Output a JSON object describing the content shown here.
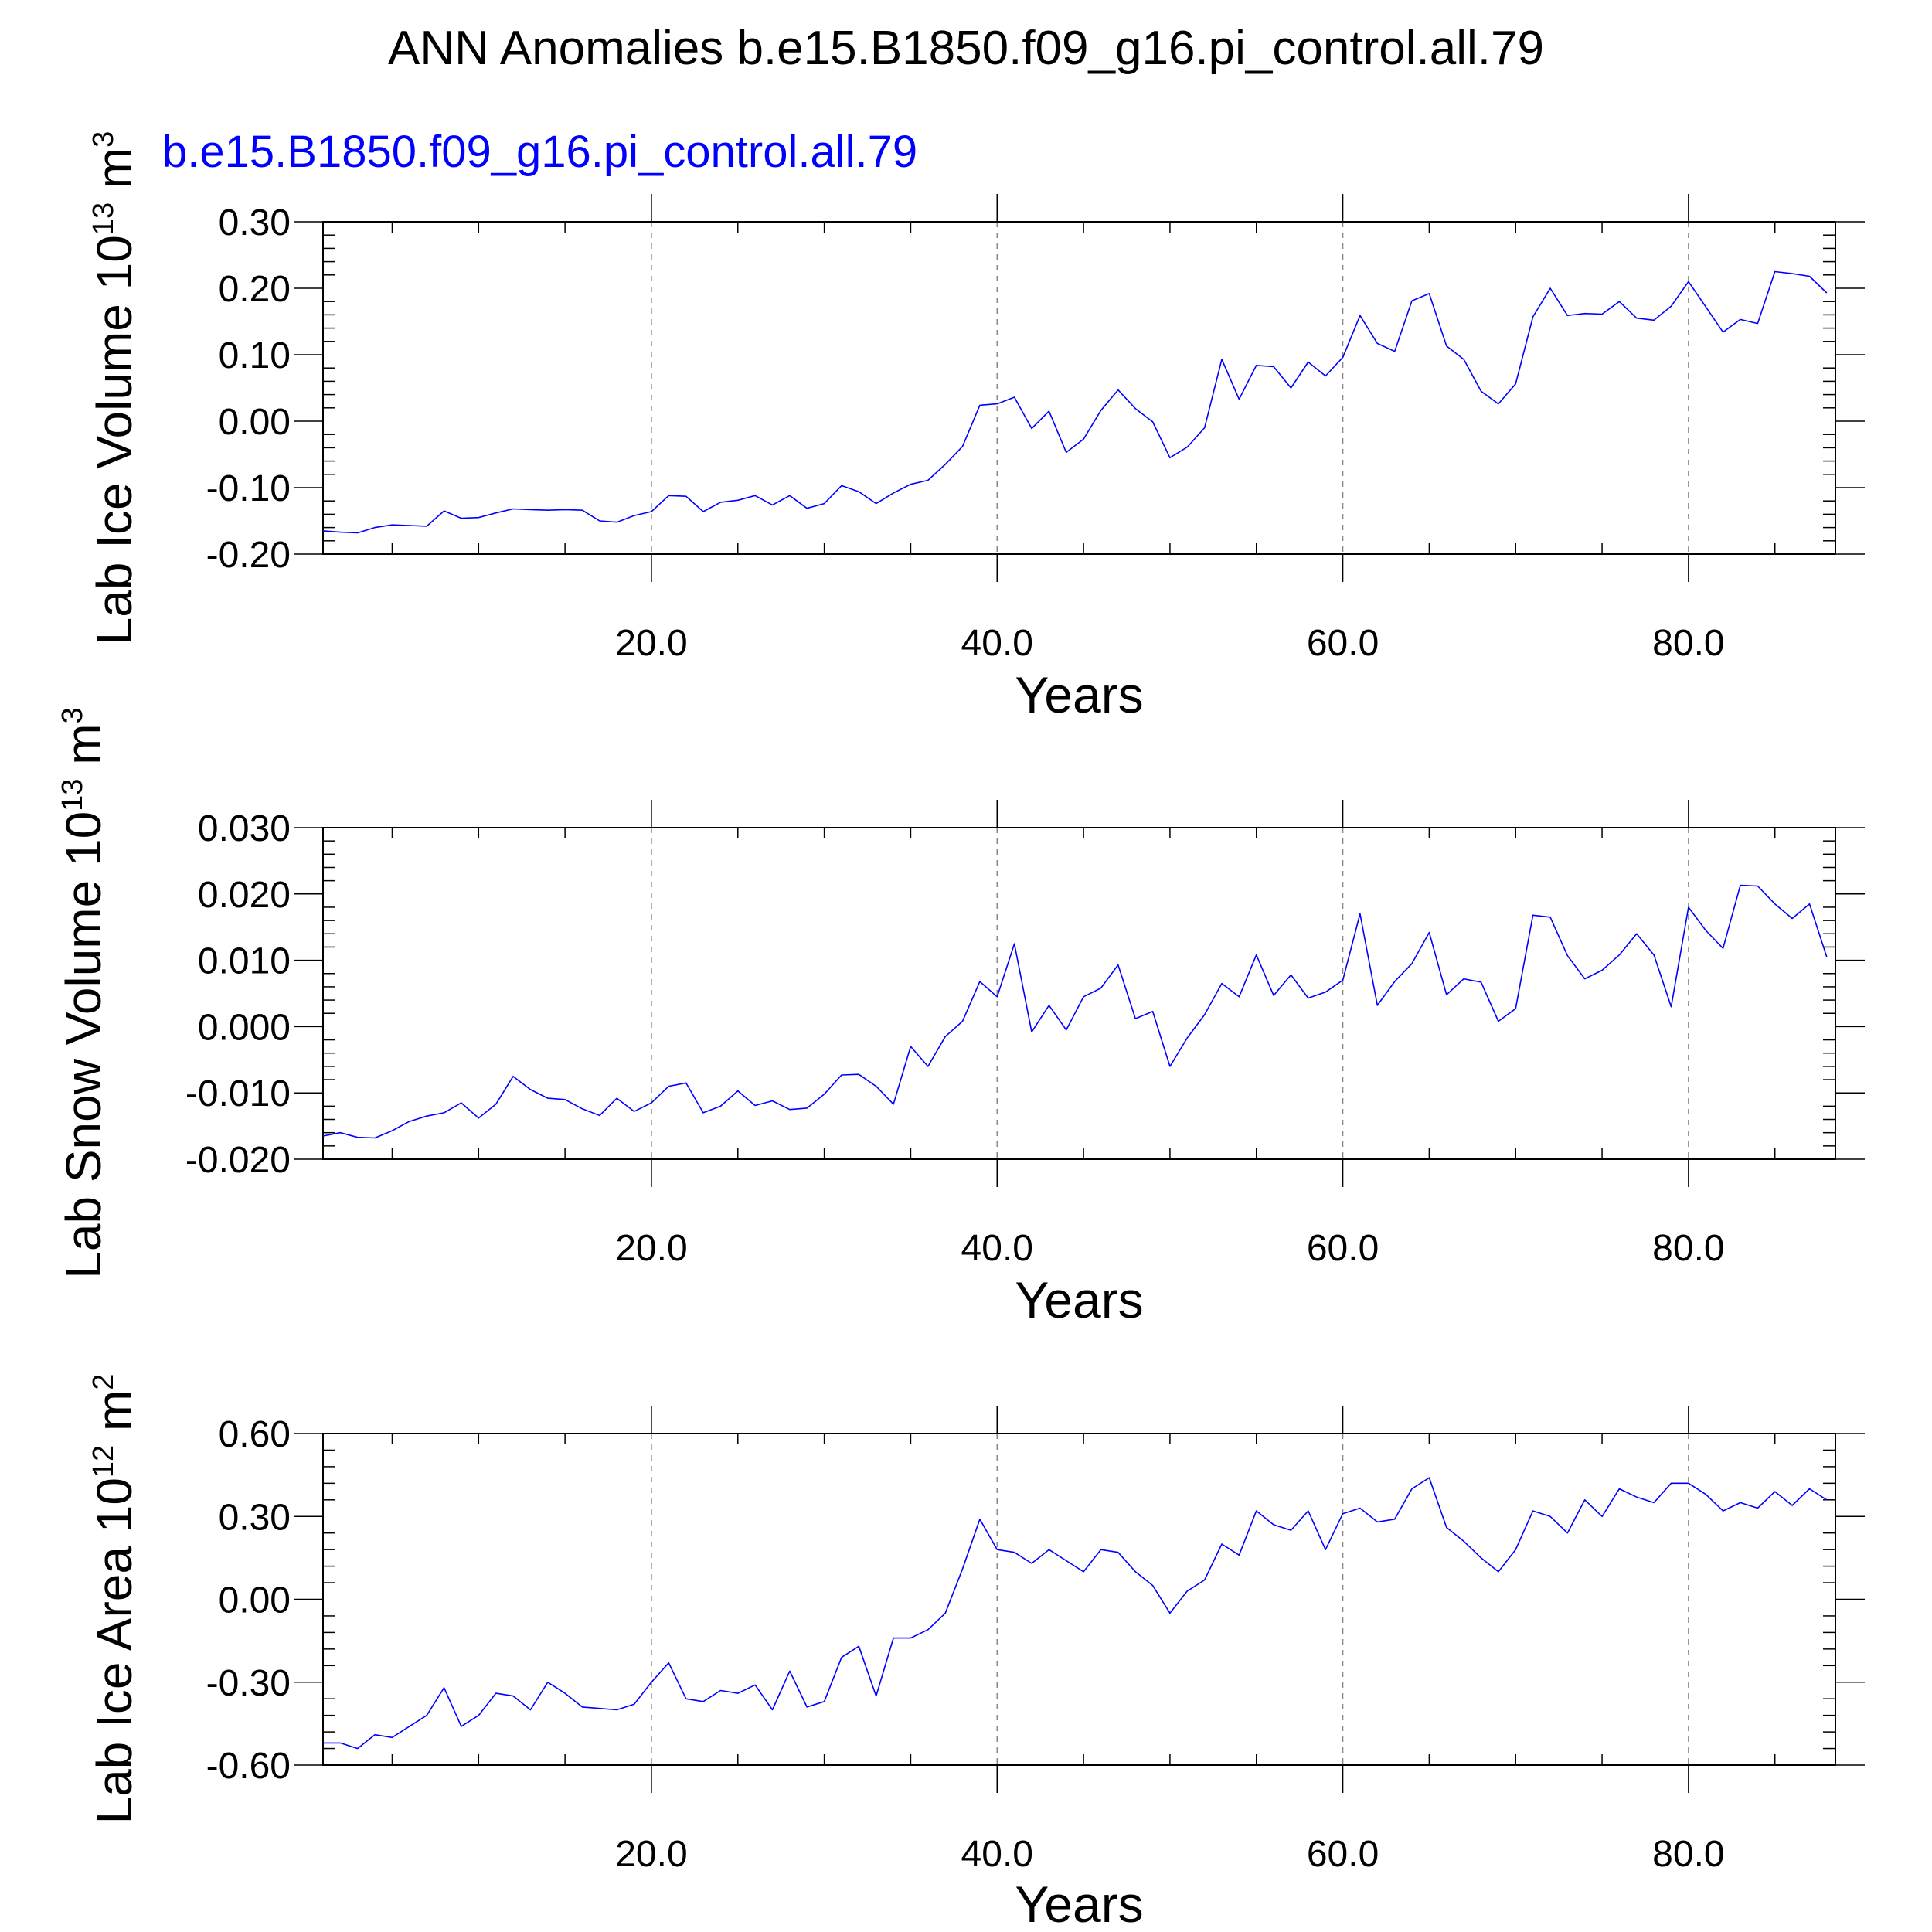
{
  "title": "ANN Anomalies b.e15.B1850.f09_g16.pi_control.all.79",
  "run_label": "b.e15.B1850.f09_g16.pi_control.all.79",
  "colors": {
    "series": "#0000ff",
    "run_label": "#0000ff",
    "axes": "#000000",
    "grid": "#888888"
  },
  "chart_data": [
    {
      "type": "line",
      "xlabel": "Years",
      "ylabel": {
        "main": "Lab Ice Volume 10",
        "exp": "13",
        "unit": " m",
        "unit_exp": "3"
      },
      "xlim": [
        1,
        88.5
      ],
      "ylim": [
        -0.2,
        0.3
      ],
      "xticks": [
        20,
        40,
        60,
        80
      ],
      "xtick_labels": [
        "20.0",
        "40.0",
        "60.0",
        "80.0"
      ],
      "yticks": [
        -0.2,
        -0.1,
        0.0,
        0.1,
        0.2,
        0.3
      ],
      "ytick_labels": [
        "-0.20",
        "-0.10",
        "0.00",
        "0.10",
        "0.20",
        "0.30"
      ],
      "grid": "dashed vertical at major x ticks",
      "series": [
        {
          "color": "#0000ff",
          "x": [
            1,
            2,
            3,
            4,
            5,
            6,
            7,
            8,
            9,
            10,
            11,
            12,
            13,
            14,
            15,
            16,
            17,
            18,
            19,
            20,
            21,
            22,
            23,
            24,
            25,
            26,
            27,
            28,
            29,
            30,
            31,
            32,
            33,
            34,
            35,
            36,
            37,
            38,
            39,
            40,
            41,
            42,
            43,
            44,
            45,
            46,
            47,
            48,
            49,
            50,
            51,
            52,
            53,
            54,
            55,
            56,
            57,
            58,
            59,
            60,
            61,
            62,
            63,
            64,
            65,
            66,
            67,
            68,
            69,
            70,
            71,
            72,
            73,
            74,
            75,
            76,
            77,
            78,
            79,
            80,
            81,
            82,
            83,
            84,
            85,
            86,
            87,
            88
          ],
          "values": [
            -0.165,
            -0.167,
            -0.168,
            -0.16,
            -0.156,
            -0.157,
            -0.158,
            -0.135,
            -0.146,
            -0.145,
            -0.138,
            -0.132,
            -0.133,
            -0.134,
            -0.133,
            -0.134,
            -0.15,
            -0.152,
            -0.142,
            -0.136,
            -0.112,
            -0.113,
            -0.136,
            -0.122,
            -0.119,
            -0.112,
            -0.126,
            -0.112,
            -0.131,
            -0.124,
            -0.097,
            -0.106,
            -0.124,
            -0.108,
            -0.095,
            -0.089,
            -0.065,
            -0.038,
            0.024,
            0.026,
            0.036,
            -0.011,
            0.015,
            -0.047,
            -0.027,
            0.016,
            0.047,
            0.019,
            -0.001,
            -0.055,
            -0.039,
            -0.01,
            0.093,
            0.033,
            0.084,
            0.082,
            0.05,
            0.089,
            0.068,
            0.096,
            0.159,
            0.117,
            0.105,
            0.181,
            0.192,
            0.113,
            0.093,
            0.045,
            0.026,
            0.056,
            0.157,
            0.2,
            0.159,
            0.162,
            0.161,
            0.18,
            0.155,
            0.152,
            0.173,
            0.21,
            0.172,
            0.134,
            0.153,
            0.147,
            0.225,
            0.222,
            0.218,
            0.193
          ]
        }
      ]
    },
    {
      "type": "line",
      "xlabel": "Years",
      "ylabel": {
        "main": "Lab Snow Volume 10",
        "exp": "13",
        "unit": " m",
        "unit_exp": "3"
      },
      "xlim": [
        1,
        88.5
      ],
      "ylim": [
        -0.02,
        0.03
      ],
      "xticks": [
        20,
        40,
        60,
        80
      ],
      "xtick_labels": [
        "20.0",
        "40.0",
        "60.0",
        "80.0"
      ],
      "yticks": [
        -0.02,
        -0.01,
        0.0,
        0.01,
        0.02,
        0.03
      ],
      "ytick_labels": [
        "-0.020",
        "-0.010",
        "0.000",
        "0.010",
        "0.020",
        "0.030"
      ],
      "grid": "dashed vertical at major x ticks",
      "series": [
        {
          "color": "#0000ff",
          "x": [
            1,
            2,
            3,
            4,
            5,
            6,
            7,
            8,
            9,
            10,
            11,
            12,
            13,
            14,
            15,
            16,
            17,
            18,
            19,
            20,
            21,
            22,
            23,
            24,
            25,
            26,
            27,
            28,
            29,
            30,
            31,
            32,
            33,
            34,
            35,
            36,
            37,
            38,
            39,
            40,
            41,
            42,
            43,
            44,
            45,
            46,
            47,
            48,
            49,
            50,
            51,
            52,
            53,
            54,
            55,
            56,
            57,
            58,
            59,
            60,
            61,
            62,
            63,
            64,
            65,
            66,
            67,
            68,
            69,
            70,
            71,
            72,
            73,
            74,
            75,
            76,
            77,
            78,
            79,
            80,
            81,
            82,
            83,
            84,
            85,
            86,
            87,
            88
          ],
          "values": [
            -0.0165,
            -0.016,
            -0.0167,
            -0.0168,
            -0.0157,
            -0.0143,
            -0.0135,
            -0.013,
            -0.0115,
            -0.0138,
            -0.0117,
            -0.0075,
            -0.0095,
            -0.0108,
            -0.011,
            -0.0124,
            -0.0134,
            -0.0108,
            -0.0128,
            -0.0115,
            -0.009,
            -0.0085,
            -0.013,
            -0.012,
            -0.0097,
            -0.0119,
            -0.0112,
            -0.0125,
            -0.0123,
            -0.0102,
            -0.0073,
            -0.0072,
            -0.009,
            -0.0117,
            -0.003,
            -0.006,
            -0.0015,
            0.0008,
            0.0068,
            0.0045,
            0.0125,
            -0.0008,
            0.0032,
            -0.0005,
            0.0045,
            0.0058,
            0.0093,
            0.0012,
            0.0023,
            -0.006,
            -0.0017,
            0.0018,
            0.0065,
            0.0045,
            0.0108,
            0.0047,
            0.0078,
            0.0043,
            0.0052,
            0.007,
            0.017,
            0.0032,
            0.0068,
            0.0095,
            0.0142,
            0.0048,
            0.0072,
            0.0067,
            0.0008,
            0.0027,
            0.0168,
            0.0165,
            0.0107,
            0.0072,
            0.0085,
            0.0108,
            0.014,
            0.0108,
            0.003,
            0.018,
            0.0145,
            0.0118,
            0.0213,
            0.0212,
            0.0185,
            0.0163,
            0.0185,
            0.0105
          ]
        }
      ]
    },
    {
      "type": "line",
      "xlabel": "Years",
      "ylabel": {
        "main": "Lab Ice Area 10",
        "exp": "12",
        "unit": " m",
        "unit_exp": "2"
      },
      "xlim": [
        1,
        88.5
      ],
      "ylim": [
        -0.6,
        0.6
      ],
      "xticks": [
        20,
        40,
        60,
        80
      ],
      "xtick_labels": [
        "20.0",
        "40.0",
        "60.0",
        "80.0"
      ],
      "yticks": [
        -0.6,
        -0.3,
        0.0,
        0.3,
        0.6
      ],
      "ytick_labels": [
        "-0.60",
        "-0.30",
        "0.00",
        "0.30",
        "0.60"
      ],
      "grid": "dashed vertical at major x ticks",
      "series": [
        {
          "color": "#0000ff",
          "x": [
            1,
            2,
            3,
            4,
            5,
            6,
            7,
            8,
            9,
            10,
            11,
            12,
            13,
            14,
            15,
            16,
            17,
            18,
            19,
            20,
            21,
            22,
            23,
            24,
            25,
            26,
            27,
            28,
            29,
            30,
            31,
            32,
            33,
            34,
            35,
            36,
            37,
            38,
            39,
            40,
            41,
            42,
            43,
            44,
            45,
            46,
            47,
            48,
            49,
            50,
            51,
            52,
            53,
            54,
            55,
            56,
            57,
            58,
            59,
            60,
            61,
            62,
            63,
            64,
            65,
            66,
            67,
            68,
            69,
            70,
            71,
            72,
            73,
            74,
            75,
            76,
            77,
            78,
            79,
            80,
            81,
            82,
            83,
            84,
            85,
            86,
            87,
            88
          ],
          "values": [
            -0.52,
            -0.52,
            -0.54,
            -0.49,
            -0.5,
            -0.46,
            -0.42,
            -0.32,
            -0.46,
            -0.42,
            -0.34,
            -0.35,
            -0.4,
            -0.3,
            -0.34,
            -0.39,
            -0.395,
            -0.4,
            -0.38,
            -0.3,
            -0.23,
            -0.36,
            -0.37,
            -0.33,
            -0.34,
            -0.31,
            -0.4,
            -0.26,
            -0.39,
            -0.37,
            -0.21,
            -0.17,
            -0.35,
            -0.14,
            -0.14,
            -0.11,
            -0.05,
            0.11,
            0.29,
            0.18,
            0.17,
            0.13,
            0.18,
            0.14,
            0.1,
            0.18,
            0.17,
            0.1,
            0.05,
            -0.05,
            0.03,
            0.07,
            0.2,
            0.16,
            0.32,
            0.27,
            0.25,
            0.32,
            0.18,
            0.31,
            0.33,
            0.28,
            0.29,
            0.4,
            0.44,
            0.26,
            0.21,
            0.15,
            0.1,
            0.18,
            0.32,
            0.3,
            0.24,
            0.36,
            0.3,
            0.4,
            0.37,
            0.35,
            0.42,
            0.42,
            0.38,
            0.32,
            0.35,
            0.33,
            0.39,
            0.34,
            0.4,
            0.36
          ]
        }
      ]
    }
  ]
}
